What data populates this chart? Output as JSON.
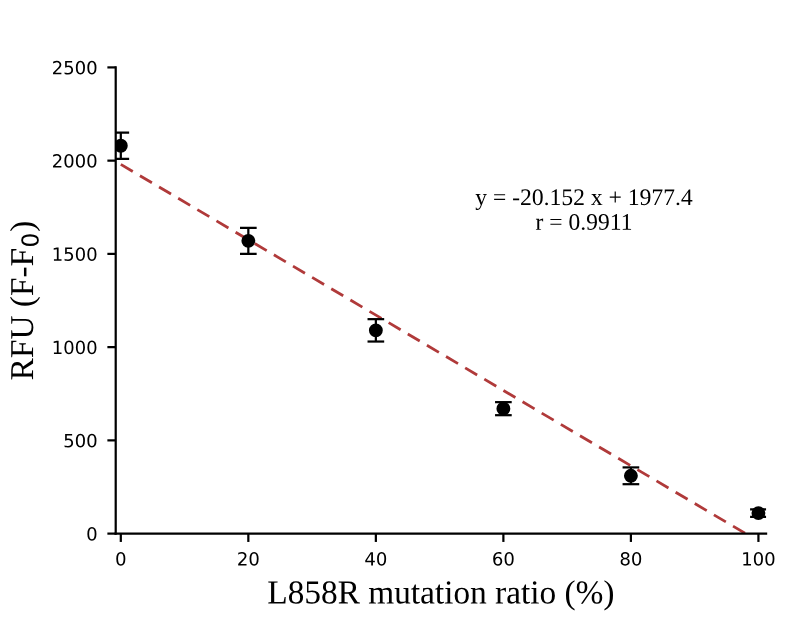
{
  "chart_data": {
    "type": "scatter",
    "xlabel": "L858R mutation ratio (%)",
    "ylabel": "RFU (F-F$_{0}$)",
    "annotations": [
      "y = -20.152 x + 1977.4\nr = 0.9911"
    ],
    "x": [
      0,
      20,
      40,
      60,
      80,
      100
    ],
    "series": [
      {
        "color": "#000000",
        "values": [
          2080,
          1570,
          1090,
          670,
          310,
          110
        ],
        "errors": [
          70,
          70,
          60,
          35,
          45,
          20
        ],
        "marker": "circle"
      },
      {
        "type": "line",
        "color": "#b03a3a",
        "x": [
          0,
          98
        ],
        "values": [
          1980,
          0
        ],
        "line_style": "dashed"
      }
    ],
    "xlim": [
      -0.8,
      101.2
    ],
    "ylim": [
      0,
      2500
    ],
    "xticks": [
      0,
      20,
      40,
      60,
      80,
      100
    ],
    "yticks": [
      0,
      500,
      1000,
      1500,
      2000,
      2500
    ],
    "grid": false,
    "legend": false
  }
}
